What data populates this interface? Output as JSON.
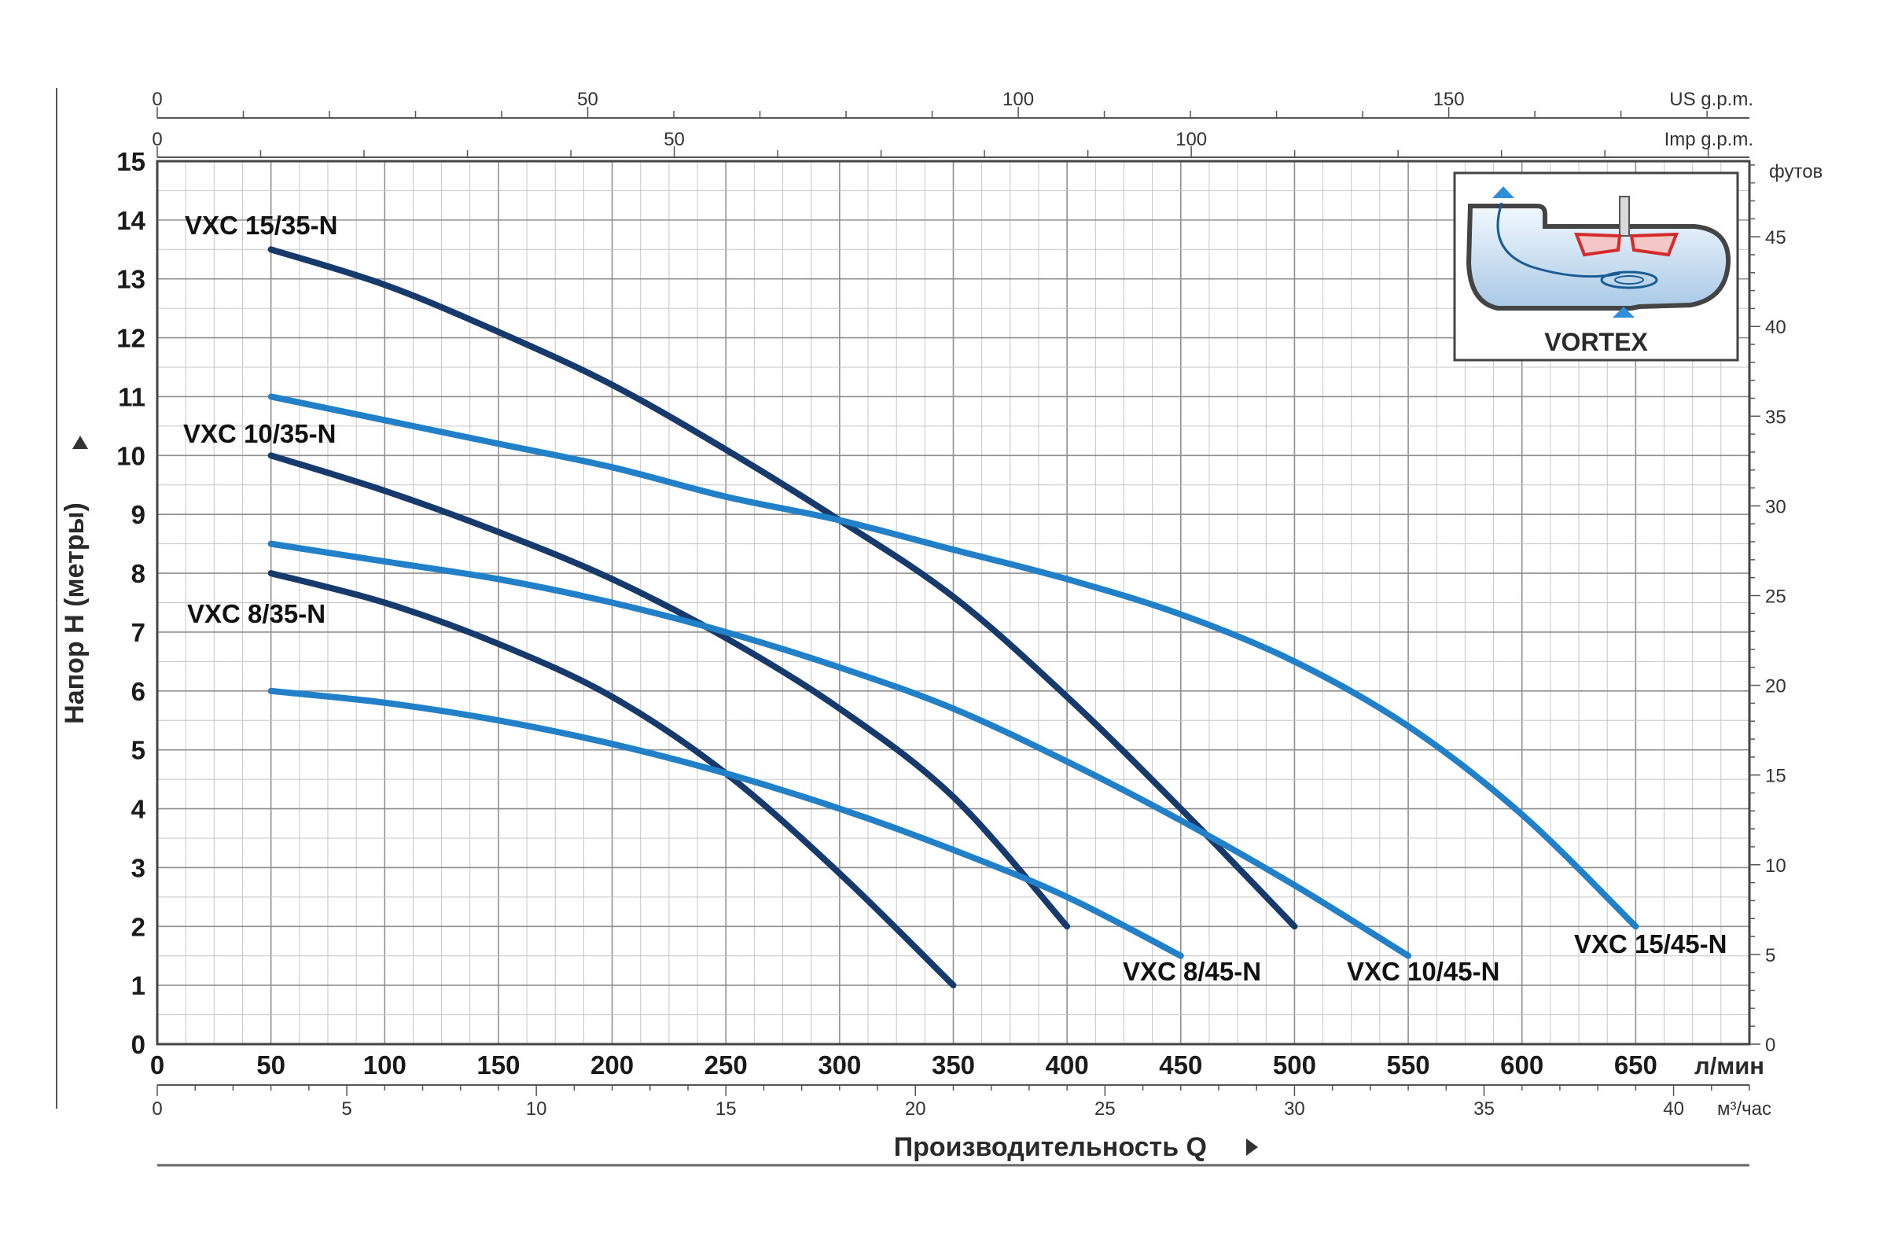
{
  "chart_data": {
    "type": "line",
    "xlabel": "Производительность Q",
    "ylabel": "Напор H (метры)",
    "x_unit_primary": "л/мин",
    "x_unit_m3": "м³/час",
    "x_unit_us": "US g.p.m.",
    "x_unit_imp": "Imp g.p.m.",
    "y_unit_feet": "футов",
    "xlim": [
      0,
      700
    ],
    "ylim": [
      0,
      15
    ],
    "grid": true,
    "x_ticks": [
      0,
      50,
      100,
      150,
      200,
      250,
      300,
      350,
      400,
      450,
      500,
      550,
      600,
      650
    ],
    "y_ticks": [
      0,
      1,
      2,
      3,
      4,
      5,
      6,
      7,
      8,
      9,
      10,
      11,
      12,
      13,
      14,
      15
    ],
    "m3_ticks": [
      0,
      5,
      10,
      15,
      20,
      25,
      30,
      35,
      40
    ],
    "us_gpm_ticks": [
      0,
      50,
      100,
      150
    ],
    "imp_gpm_ticks": [
      0,
      50,
      100
    ],
    "feet_ticks": [
      0,
      5,
      10,
      15,
      20,
      25,
      30,
      35,
      40,
      45
    ],
    "inset_label": "VORTEX",
    "series": [
      {
        "name": "VXC 15/35-N",
        "color": "#163a6b",
        "x": [
          50,
          100,
          150,
          200,
          250,
          300,
          350,
          400,
          450,
          500
        ],
        "y": [
          13.5,
          12.9,
          12.1,
          11.2,
          10.1,
          8.9,
          7.6,
          5.9,
          4.0,
          2.0
        ]
      },
      {
        "name": "VXC 10/35-N",
        "color": "#163a6b",
        "x": [
          50,
          100,
          150,
          200,
          250,
          300,
          350,
          400
        ],
        "y": [
          10.0,
          9.4,
          8.7,
          7.9,
          6.9,
          5.7,
          4.2,
          2.0
        ]
      },
      {
        "name": "VXC 8/35-N",
        "color": "#163a6b",
        "x": [
          50,
          100,
          150,
          200,
          250,
          300,
          350
        ],
        "y": [
          8.0,
          7.5,
          6.8,
          5.9,
          4.6,
          2.9,
          1.0
        ]
      },
      {
        "name": "VXC 15/45-N",
        "color": "#2280c8",
        "x": [
          50,
          100,
          150,
          200,
          250,
          300,
          350,
          400,
          450,
          500,
          550,
          600,
          650
        ],
        "y": [
          11.0,
          10.6,
          10.2,
          9.8,
          9.3,
          8.9,
          8.4,
          7.9,
          7.3,
          6.5,
          5.4,
          3.9,
          2.0
        ]
      },
      {
        "name": "VXC 10/45-N",
        "color": "#2280c8",
        "x": [
          50,
          100,
          150,
          200,
          250,
          300,
          350,
          400,
          450,
          500,
          550
        ],
        "y": [
          8.5,
          8.2,
          7.9,
          7.5,
          7.0,
          6.4,
          5.7,
          4.8,
          3.8,
          2.7,
          1.5
        ]
      },
      {
        "name": "VXC 8/45-N",
        "color": "#2280c8",
        "x": [
          50,
          100,
          150,
          200,
          250,
          300,
          350,
          400,
          450
        ],
        "y": [
          6.0,
          5.8,
          5.5,
          5.1,
          4.6,
          4.0,
          3.3,
          2.5,
          1.5
        ]
      }
    ]
  }
}
